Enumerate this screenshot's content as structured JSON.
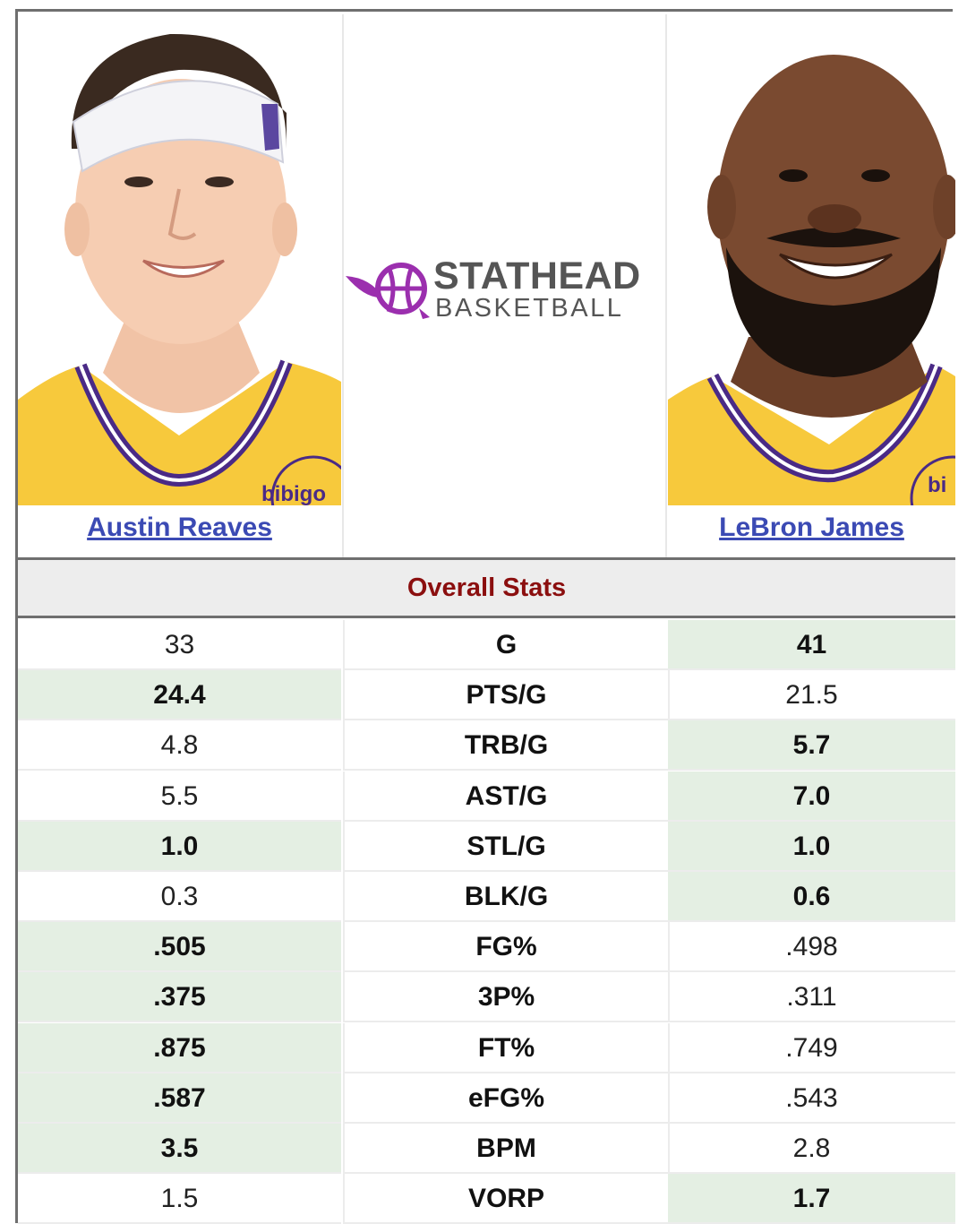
{
  "players": {
    "left": {
      "name": "Austin Reaves",
      "jersey_text": "bibigo"
    },
    "right": {
      "name": "LeBron James",
      "jersey_text": "bi"
    }
  },
  "logo": {
    "word1": "STATHEAD",
    "word2": "BASKETBALL",
    "icon": "basketball-logo-icon",
    "accent": "#9b2fae"
  },
  "section": {
    "title": "Overall Stats"
  },
  "colors": {
    "winner_bg": "#e4efe3",
    "link": "#3b4ab4",
    "section_title": "#8b0f0f",
    "jersey": "#f7c93c",
    "jersey_trim": "#4a2a86"
  },
  "stats": [
    {
      "label": "G",
      "left": "33",
      "right": "41",
      "winner": "right"
    },
    {
      "label": "PTS/G",
      "left": "24.4",
      "right": "21.5",
      "winner": "left"
    },
    {
      "label": "TRB/G",
      "left": "4.8",
      "right": "5.7",
      "winner": "right"
    },
    {
      "label": "AST/G",
      "left": "5.5",
      "right": "7.0",
      "winner": "right"
    },
    {
      "label": "STL/G",
      "left": "1.0",
      "right": "1.0",
      "winner": "both"
    },
    {
      "label": "BLK/G",
      "left": "0.3",
      "right": "0.6",
      "winner": "right"
    },
    {
      "label": "FG%",
      "left": ".505",
      "right": ".498",
      "winner": "left"
    },
    {
      "label": "3P%",
      "left": ".375",
      "right": ".311",
      "winner": "left"
    },
    {
      "label": "FT%",
      "left": ".875",
      "right": ".749",
      "winner": "left"
    },
    {
      "label": "eFG%",
      "left": ".587",
      "right": ".543",
      "winner": "left"
    },
    {
      "label": "BPM",
      "left": "3.5",
      "right": "2.8",
      "winner": "left"
    },
    {
      "label": "VORP",
      "left": "1.5",
      "right": "1.7",
      "winner": "right"
    }
  ]
}
